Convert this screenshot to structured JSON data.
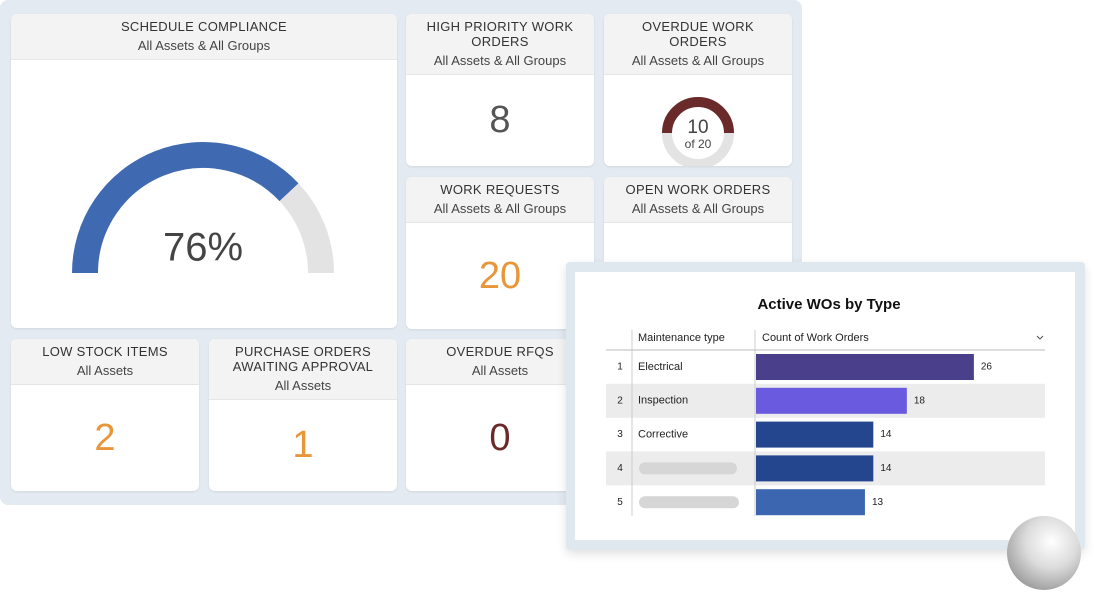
{
  "tiles": {
    "schedule_compliance": {
      "title": "SCHEDULE COMPLIANCE",
      "subtitle": "All Assets & All Groups",
      "value": 76,
      "value_label": "76%",
      "color": "#3f69b0"
    },
    "high_priority": {
      "title": "HIGH PRIORITY WORK ORDERS",
      "subtitle": "All Assets & All Groups",
      "value": "8",
      "color": "#555555"
    },
    "overdue_work_orders": {
      "title": "OVERDUE WORK ORDERS",
      "subtitle": "All Assets & All Groups",
      "value": 10,
      "value_label": "10",
      "total": 20,
      "total_label": "of 20",
      "color": "#6b2a2a"
    },
    "work_requests": {
      "title": "WORK REQUESTS",
      "subtitle": "All Assets & All Groups",
      "value": "20",
      "color": "#e8963a"
    },
    "open_work_orders": {
      "title": "OPEN WORK ORDERS",
      "subtitle": "All Assets & All Groups"
    },
    "low_stock": {
      "title": "LOW STOCK ITEMS",
      "subtitle": "All Assets",
      "value": "2",
      "color": "#e8963a"
    },
    "purchase_orders": {
      "title": "PURCHASE ORDERS AWAITING APPROVAL",
      "subtitle": "All Assets",
      "value": "1",
      "color": "#e8963a"
    },
    "overdue_rfqs": {
      "title": "OVERDUE RFQS",
      "subtitle": "All Assets",
      "value": "0",
      "color": "#6b2a2a"
    }
  },
  "active_wos": {
    "title": "Active WOs by Type",
    "columns": [
      "Maintenance type",
      "Count of Work Orders"
    ],
    "rows": [
      {
        "index": "1",
        "type": "Electrical",
        "count": 26,
        "color": "#4a3f8a"
      },
      {
        "index": "2",
        "type": "Inspection",
        "count": 18,
        "color": "#6a5ae0"
      },
      {
        "index": "3",
        "type": "Corrective",
        "count": 14,
        "color": "#24468f"
      },
      {
        "index": "4",
        "type": null,
        "count": 14,
        "color": "#24468f"
      },
      {
        "index": "5",
        "type": null,
        "count": 13,
        "color": "#3c66b0"
      }
    ]
  }
}
